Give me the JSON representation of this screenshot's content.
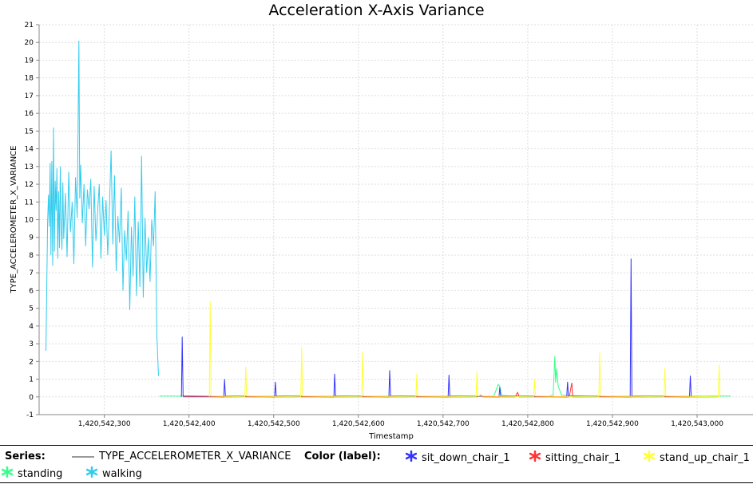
{
  "chart_data": {
    "type": "line",
    "title": "Acceleration X-Axis Variance",
    "xlabel": "Timestamp",
    "ylabel": "TYPE_ACCELEROMETER_X_VARIANCE",
    "xlim": [
      1420542223,
      1420543066
    ],
    "ylim": [
      -1,
      21
    ],
    "xticks": [
      1420542300,
      1420542400,
      1420542500,
      1420542600,
      1420542700,
      1420542800,
      1420542900,
      1420543000
    ],
    "xtick_labels": [
      "1,420,542,300",
      "1,420,542,400",
      "1,420,542,500",
      "1,420,542,600",
      "1,420,542,700",
      "1,420,542,800",
      "1,420,542,900",
      "1,420,543,000"
    ],
    "yticks": [
      -1,
      0,
      1,
      2,
      3,
      4,
      5,
      6,
      7,
      8,
      9,
      10,
      11,
      12,
      13,
      14,
      15,
      16,
      17,
      18,
      19,
      20,
      21
    ],
    "grid": true,
    "legend_placement": "bottom",
    "colors": {
      "sit_down_chair_1": "#3333ff",
      "sitting_chair_1": "#ff3333",
      "stand_up_chair_1": "#ffff33",
      "standing": "#33ff88",
      "walking": "#33ccee",
      "series_line": "#999999"
    },
    "series": [
      {
        "label": "walking",
        "x": [
          1420542231,
          1420542232,
          1420542233,
          1420542234,
          1420542235,
          1420542236,
          1420542237,
          1420542238,
          1420542239,
          1420542240,
          1420542241,
          1420542242,
          1420542243,
          1420542244,
          1420542245,
          1420542246,
          1420542247,
          1420542248,
          1420542249,
          1420542250,
          1420542251,
          1420542252,
          1420542254,
          1420542256,
          1420542258,
          1420542260,
          1420542262,
          1420542264,
          1420542266,
          1420542268,
          1420542270,
          1420542271,
          1420542272,
          1420542274,
          1420542276,
          1420542278,
          1420542280,
          1420542282,
          1420542284,
          1420542286,
          1420542288,
          1420542290,
          1420542292,
          1420542294,
          1420542296,
          1420542298,
          1420542300,
          1420542302,
          1420542304,
          1420542306,
          1420542308,
          1420542310,
          1420542312,
          1420542314,
          1420542316,
          1420542318,
          1420542320,
          1420542322,
          1420542324,
          1420542326,
          1420542328,
          1420542330,
          1420542332,
          1420542334,
          1420542336,
          1420542338,
          1420542340,
          1420542342,
          1420542344,
          1420542346,
          1420542348,
          1420542350,
          1420542352,
          1420542354,
          1420542356,
          1420542358,
          1420542360,
          1420542362,
          1420542364
        ],
        "y": [
          2.6,
          6.0,
          9.8,
          11.4,
          9.6,
          13.2,
          8.0,
          13.3,
          7.4,
          15.2,
          8.2,
          12.2,
          10.5,
          12.9,
          7.8,
          11.6,
          8.4,
          13.0,
          9.5,
          8.3,
          12.1,
          8.9,
          11.5,
          7.9,
          12.7,
          9.3,
          11.0,
          7.5,
          12.4,
          10.1,
          20.1,
          11.2,
          13.1,
          9.8,
          12.0,
          8.5,
          11.7,
          10.6,
          12.3,
          7.3,
          11.9,
          8.8,
          10.4,
          12.0,
          7.8,
          11.3,
          9.1,
          11.1,
          8.0,
          10.6,
          13.9,
          8.6,
          12.5,
          7.1,
          10.2,
          8.7,
          11.8,
          6.0,
          9.4,
          7.7,
          10.5,
          4.9,
          9.6,
          6.8,
          11.3,
          5.7,
          9.9,
          6.2,
          13.6,
          5.6,
          10.1,
          7.0,
          9.0,
          6.5,
          10.0,
          8.5,
          11.6,
          3.5,
          1.2
        ]
      },
      {
        "label": "standing",
        "x": [
          1420542365,
          1420542380,
          1420542400,
          1420542430,
          1420542460,
          1420542480,
          1420542500,
          1420542540,
          1420542560,
          1420542580,
          1420542620,
          1420542640,
          1420542660,
          1420542680,
          1420542700,
          1420542730,
          1420542760,
          1420542765,
          1420542767,
          1420542769,
          1420542780,
          1420542800,
          1420542815,
          1420542825,
          1420542830,
          1420542831,
          1420542832,
          1420542833,
          1420542834,
          1420542836,
          1420542840,
          1420542870,
          1420542890,
          1420542900,
          1420542930,
          1420542960,
          1420542980,
          1420543000,
          1420543020,
          1420543040
        ],
        "y": [
          0.05,
          0.05,
          0.05,
          0.05,
          0.05,
          0.05,
          0.05,
          0.05,
          0.05,
          0.05,
          0.05,
          0.05,
          0.05,
          0.05,
          0.05,
          0.05,
          0.05,
          0.7,
          0.6,
          0.1,
          0.05,
          0.05,
          0.05,
          0.05,
          0.1,
          1.2,
          2.3,
          0.8,
          1.6,
          0.6,
          0.1,
          0.05,
          0.05,
          0.05,
          0.05,
          0.05,
          0.05,
          0.05,
          0.05,
          0.05
        ]
      },
      {
        "label": "sit_down_chair_1",
        "peaks": [
          {
            "x": 1420542392,
            "y": 3.4
          },
          {
            "x": 1420542442,
            "y": 1.0
          },
          {
            "x": 1420542502,
            "y": 0.85
          },
          {
            "x": 1420542572,
            "y": 1.3
          },
          {
            "x": 1420542637,
            "y": 1.5
          },
          {
            "x": 1420542707,
            "y": 1.25
          },
          {
            "x": 1420542767,
            "y": 0.55
          },
          {
            "x": 1420542847,
            "y": 0.85
          },
          {
            "x": 1420542922,
            "y": 7.8
          },
          {
            "x": 1420542992,
            "y": 1.2
          }
        ]
      },
      {
        "label": "sitting_chair_1",
        "x": [
          1420542393,
          1420542405,
          1420542420,
          1420542444,
          1420542460,
          1420542504,
          1420542520,
          1420542574,
          1420542600,
          1420542639,
          1420542660,
          1420542709,
          1420542730,
          1420542740,
          1420542745,
          1420542747,
          1420542769,
          1420542785,
          1420542788,
          1420542790,
          1420542810,
          1420542849,
          1420542852,
          1420542853,
          1420542855,
          1420542870,
          1420542924,
          1420542940,
          1420542960,
          1420542994,
          1420543010,
          1420543025
        ],
        "y": [
          0.0,
          0.0,
          0.0,
          0.0,
          0.0,
          0.0,
          0.0,
          0.0,
          0.0,
          0.0,
          0.0,
          0.0,
          0.0,
          0.0,
          0.1,
          0.0,
          0.0,
          0.0,
          0.25,
          0.0,
          0.0,
          0.0,
          0.8,
          0.0,
          0.0,
          0.0,
          0.0,
          0.0,
          0.0,
          0.0,
          0.0,
          0.0
        ]
      },
      {
        "label": "stand_up_chair_1",
        "peaks": [
          {
            "x": 1420542425,
            "y": 5.4
          },
          {
            "x": 1420542467,
            "y": 1.7
          },
          {
            "x": 1420542533,
            "y": 2.8
          },
          {
            "x": 1420542605,
            "y": 2.55
          },
          {
            "x": 1420542669,
            "y": 1.3
          },
          {
            "x": 1420542740,
            "y": 1.45
          },
          {
            "x": 1420542808,
            "y": 1.0
          },
          {
            "x": 1420542885,
            "y": 2.5
          },
          {
            "x": 1420542962,
            "y": 1.6
          },
          {
            "x": 1420543026,
            "y": 1.8
          }
        ]
      }
    ]
  },
  "legend": {
    "series_heading": "Series:",
    "series_name": "TYPE_ACCELEROMETER_X_VARIANCE",
    "color_heading": "Color (label):",
    "entries": [
      {
        "label": "sit_down_chair_1",
        "color": "#3333ff"
      },
      {
        "label": "sitting_chair_1",
        "color": "#ff3333"
      },
      {
        "label": "stand_up_chair_1",
        "color": "#ffff33"
      },
      {
        "label": "standing",
        "color": "#33ff88"
      },
      {
        "label": "walking",
        "color": "#33ccee"
      }
    ]
  }
}
